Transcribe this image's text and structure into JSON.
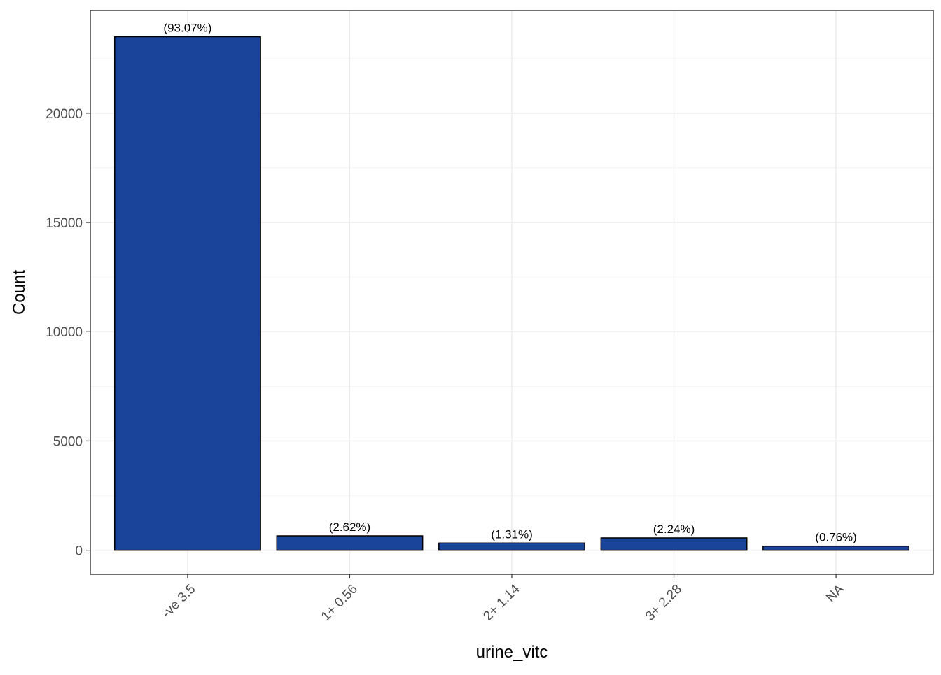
{
  "chart_data": {
    "type": "bar",
    "categories": [
      "-ve 3.5",
      "1+ 0.56",
      "2+ 1.14",
      "3+ 2.28",
      "NA"
    ],
    "values": [
      23500,
      660,
      330,
      565,
      190
    ],
    "data_labels": [
      "(93.07%)",
      "(2.62%)",
      "(1.31%)",
      "(2.24%)",
      "(0.76%)"
    ],
    "title": "",
    "xlabel": "urine_vitc",
    "ylabel": "Count",
    "ylim": [
      -1100,
      24700
    ],
    "y_ticks": [
      0,
      5000,
      10000,
      15000,
      20000
    ],
    "y_tick_labels": [
      "0",
      "5000",
      "10000",
      "15000",
      "20000"
    ],
    "grid": true,
    "legend": "none",
    "colors": {
      "bar_fill": "#1a4499",
      "bar_outline": "#000000",
      "grid": "#ebebeb",
      "panel_border": "#333333"
    }
  }
}
